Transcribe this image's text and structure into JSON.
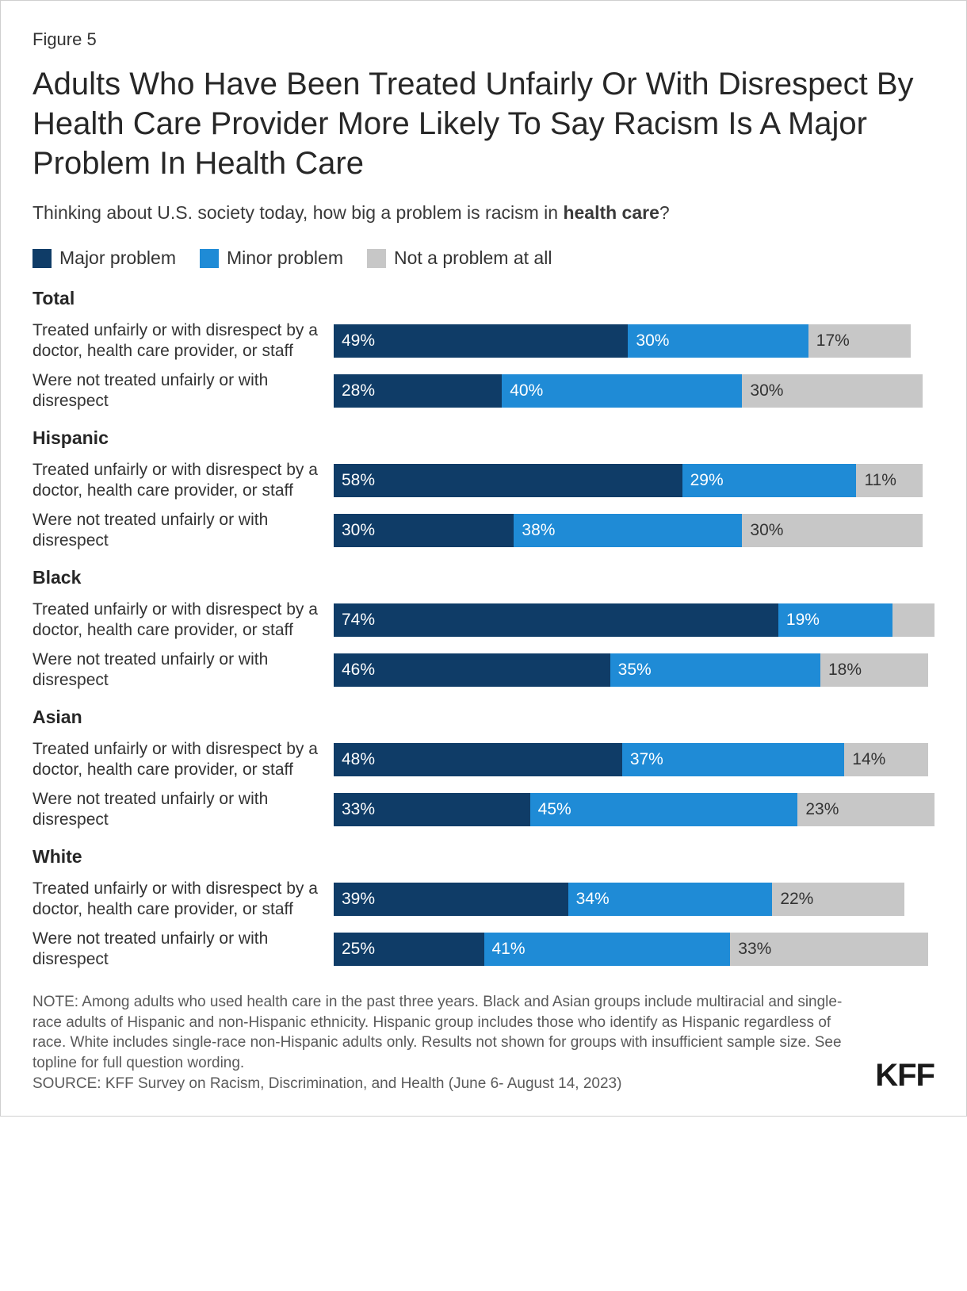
{
  "figure_number": "Figure 5",
  "title": "Adults Who Have Been Treated Unfairly Or With Disrespect By Health Care Provider More Likely To Say Racism Is A Major Problem In Health Care",
  "subtitle_prefix": "Thinking about U.S. society today, how big a problem is racism in ",
  "subtitle_bold": "health care",
  "subtitle_suffix": "?",
  "legend": {
    "major": {
      "label": "Major problem",
      "color": "#0f3c67"
    },
    "minor": {
      "label": "Minor problem",
      "color": "#1f8bd6"
    },
    "none": {
      "label": "Not a problem at all",
      "color": "#c7c7c7"
    }
  },
  "bar_max_percent": 100,
  "font_family": "sans-serif",
  "background_color": "#ffffff",
  "row_labels": {
    "treated": "Treated unfairly or with disrespect by a doctor, health care provider, or staff",
    "not_treated": "Were not treated unfairly or with disrespect"
  },
  "groups": [
    {
      "name": "Total",
      "rows": [
        {
          "which": "treated",
          "major": 49,
          "minor": 30,
          "none": 17
        },
        {
          "which": "not_treated",
          "major": 28,
          "minor": 40,
          "none": 30
        }
      ]
    },
    {
      "name": "Hispanic",
      "rows": [
        {
          "which": "treated",
          "major": 58,
          "minor": 29,
          "none": 11
        },
        {
          "which": "not_treated",
          "major": 30,
          "minor": 38,
          "none": 30
        }
      ]
    },
    {
      "name": "Black",
      "rows": [
        {
          "which": "treated",
          "major": 74,
          "minor": 19,
          "none": null
        },
        {
          "which": "not_treated",
          "major": 46,
          "minor": 35,
          "none": 18
        }
      ]
    },
    {
      "name": "Asian",
      "rows": [
        {
          "which": "treated",
          "major": 48,
          "minor": 37,
          "none": 14
        },
        {
          "which": "not_treated",
          "major": 33,
          "minor": 45,
          "none": 23
        }
      ]
    },
    {
      "name": "White",
      "rows": [
        {
          "which": "treated",
          "major": 39,
          "minor": 34,
          "none": 22
        },
        {
          "which": "not_treated",
          "major": 25,
          "minor": 41,
          "none": 33
        }
      ]
    }
  ],
  "note": "NOTE: Among adults who used health care in the past three years. Black and Asian groups include multiracial and single-race adults of Hispanic and non-Hispanic ethnicity. Hispanic group includes those who identify as Hispanic regardless of race. White includes single-race non-Hispanic adults only. Results not shown for groups with insufficient sample size. See topline for full question wording.",
  "source": "SOURCE: KFF Survey on Racism, Discrimination, and Health (June 6- August 14, 2023)",
  "logo": "KFF",
  "none_implied_width_pct": 7
}
